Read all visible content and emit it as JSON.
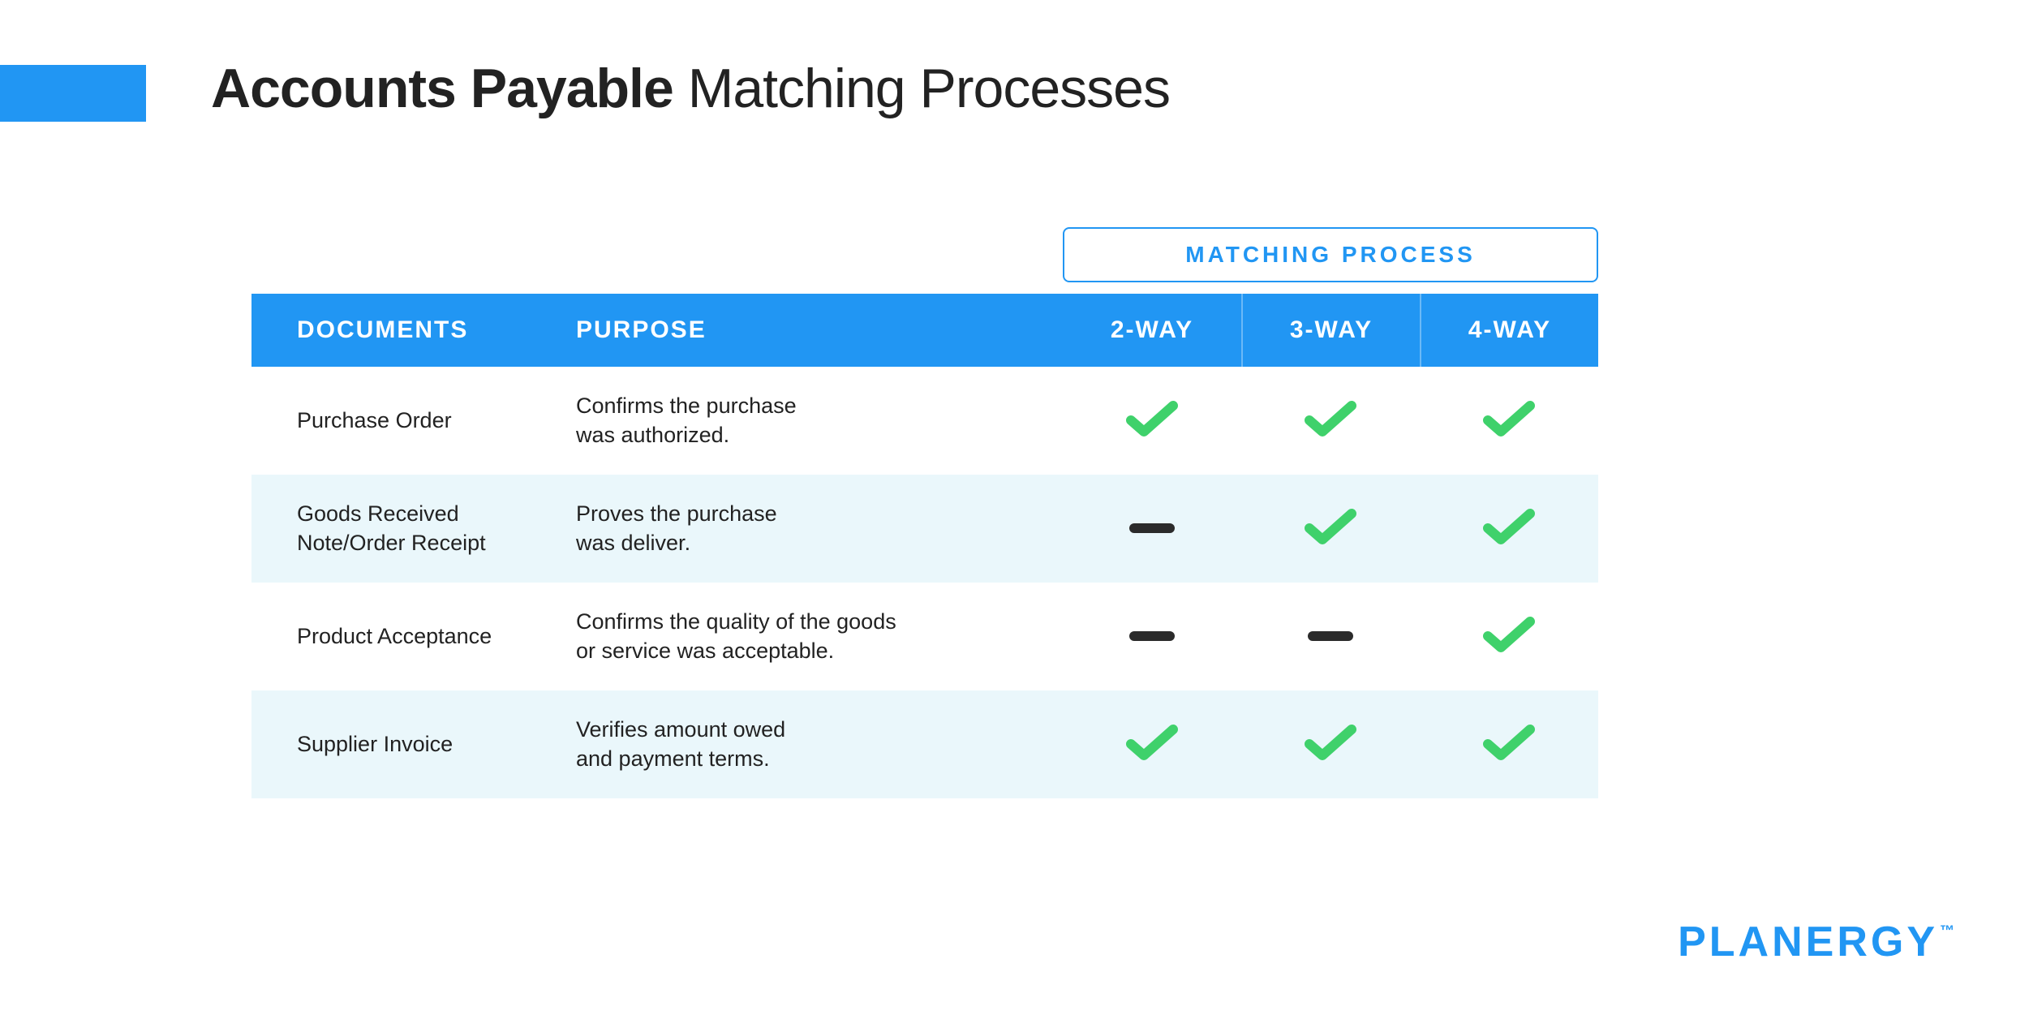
{
  "colors": {
    "accent": "#2196f3",
    "check": "#3fd16b",
    "dash": "#2b2b2b",
    "row_alt_bg": "#eaf7fb",
    "text": "#222222",
    "background": "#ffffff"
  },
  "title": {
    "bold": "Accounts Payable",
    "light": "Matching Processes",
    "fontsize": 68
  },
  "table": {
    "group_header": "MATCHING PROCESS",
    "columns": {
      "documents": "DOCUMENTS",
      "purpose": "PURPOSE",
      "ways": [
        "2-WAY",
        "3-WAY",
        "4-WAY"
      ]
    },
    "header_fontsize": 30,
    "cell_fontsize": 27,
    "rows": [
      {
        "document": "Purchase Order",
        "purpose": "Confirms the purchase\nwas authorized.",
        "marks": [
          "check",
          "check",
          "check"
        ]
      },
      {
        "document": "Goods Received\nNote/Order Receipt",
        "purpose": "Proves the purchase\nwas deliver.",
        "marks": [
          "dash",
          "check",
          "check"
        ]
      },
      {
        "document": "Product Acceptance",
        "purpose": "Confirms the quality of the goods\nor service was acceptable.",
        "marks": [
          "dash",
          "dash",
          "check"
        ]
      },
      {
        "document": "Supplier Invoice",
        "purpose": "Verifies amount owed\nand payment terms.",
        "marks": [
          "check",
          "check",
          "check"
        ]
      }
    ]
  },
  "logo": {
    "text": "PLANERGY",
    "tm": "™"
  }
}
